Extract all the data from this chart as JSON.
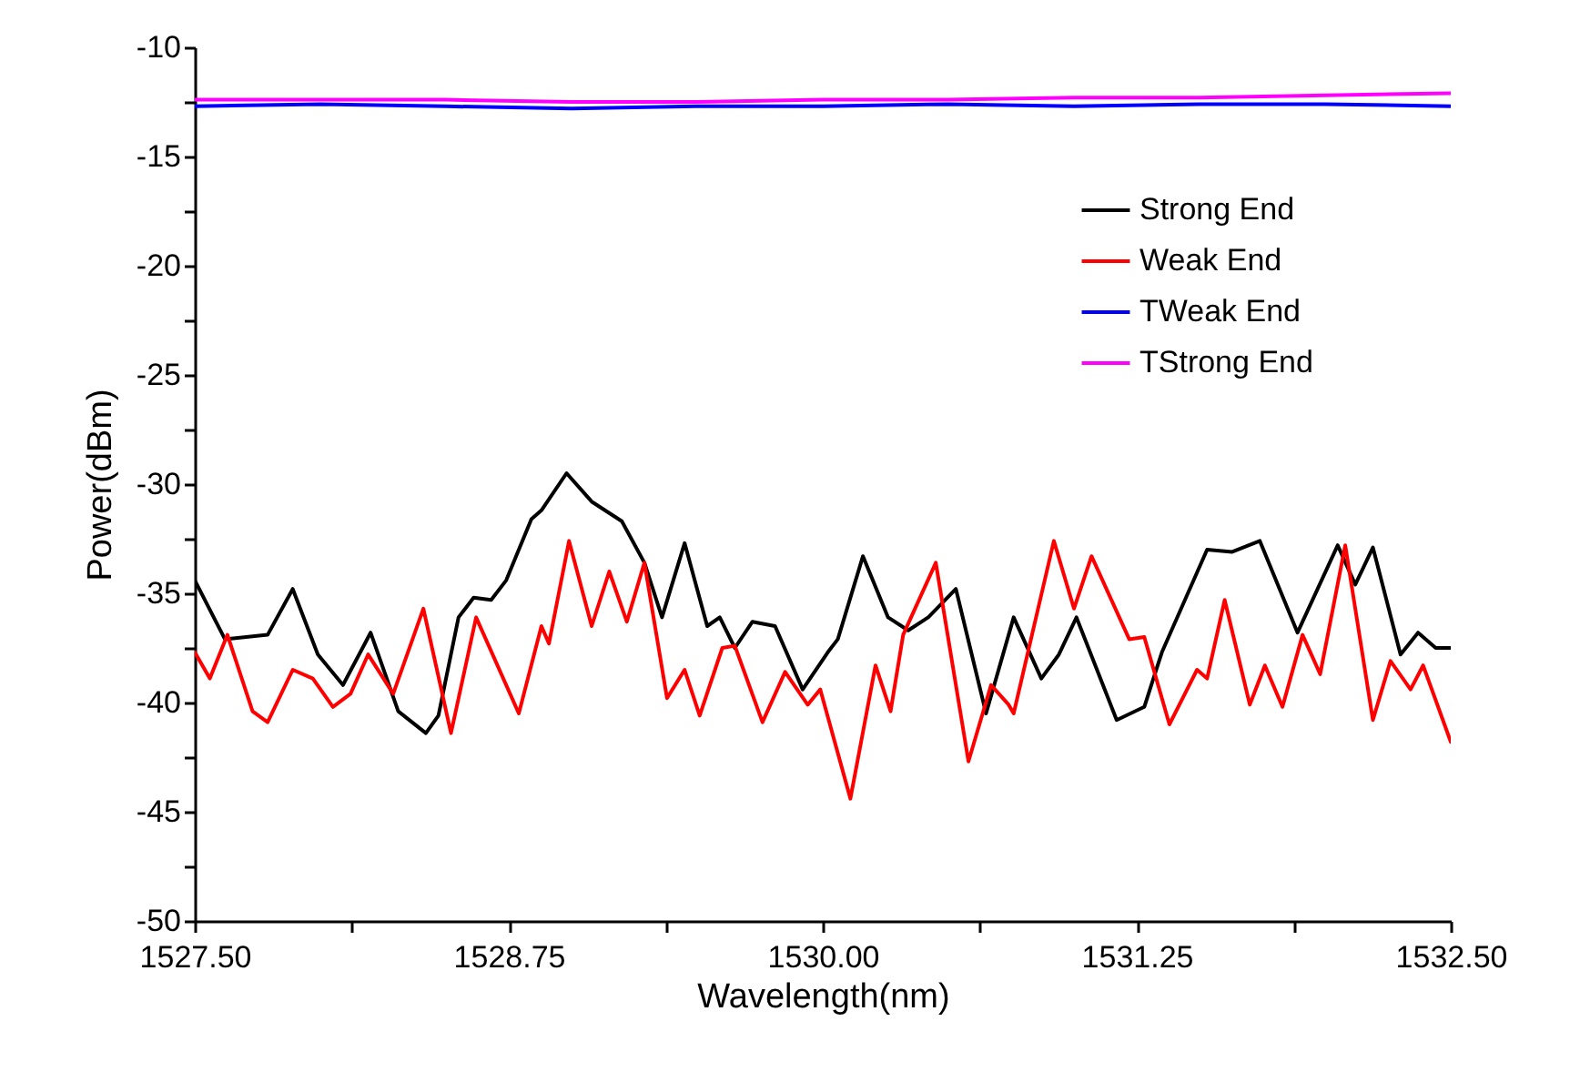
{
  "chart_data": {
    "type": "line",
    "xlabel": "Wavelength(nm)",
    "ylabel": "Power(dBm)",
    "xlim": [
      1527.5,
      1532.5
    ],
    "xticks": [
      {
        "value": 1527.5,
        "label": "1527.50"
      },
      {
        "value": 1528.125,
        "label": null
      },
      {
        "value": 1528.75,
        "label": "1528.75"
      },
      {
        "value": 1529.375,
        "label": null
      },
      {
        "value": 1530,
        "label": "1530.00"
      },
      {
        "value": 1530.625,
        "label": null
      },
      {
        "value": 1531.25,
        "label": "1531.25"
      },
      {
        "value": 1531.875,
        "label": null
      },
      {
        "value": 1532.5,
        "label": "1532.50"
      }
    ],
    "ylim": [
      -50,
      -10
    ],
    "yticks": [
      -50,
      {
        "value": -47.5,
        "label": null
      },
      -45,
      {
        "value": -42.5,
        "label": null
      },
      -40,
      {
        "value": -37.5,
        "label": null
      },
      -35,
      {
        "value": -32.5,
        "label": null
      },
      -30,
      {
        "value": -27.5,
        "label": null
      },
      -25,
      {
        "value": -22.5,
        "label": null
      },
      -20,
      {
        "value": -17.5,
        "label": null
      },
      -15,
      {
        "value": -12.5,
        "label": null
      },
      -10
    ],
    "legend": "top right",
    "series": [
      {
        "name": "Strong End",
        "color": "#000000",
        "x": [
          1527.5,
          1527.62,
          1527.79,
          1527.89,
          1527.99,
          1528.09,
          1528.2,
          1528.31,
          1528.42,
          1528.47,
          1528.55,
          1528.61,
          1528.68,
          1528.74,
          1528.84,
          1528.88,
          1528.98,
          1529.08,
          1529.2,
          1529.29,
          1529.36,
          1529.45,
          1529.54,
          1529.59,
          1529.65,
          1529.72,
          1529.81,
          1529.92,
          1530.02,
          1530.06,
          1530.16,
          1530.26,
          1530.34,
          1530.42,
          1530.53,
          1530.65,
          1530.76,
          1530.87,
          1530.94,
          1531.01,
          1531.17,
          1531.28,
          1531.35,
          1531.53,
          1531.63,
          1531.74,
          1531.89,
          1532.05,
          1532.12,
          1532.19,
          1532.3,
          1532.37,
          1532.44,
          1532.5
        ],
        "values": [
          -34.4,
          -37.1,
          -36.9,
          -34.8,
          -37.8,
          -39.2,
          -36.8,
          -40.4,
          -41.4,
          -40.6,
          -36.1,
          -35.2,
          -35.3,
          -34.4,
          -31.6,
          -31.2,
          -29.5,
          -30.8,
          -31.7,
          -33.6,
          -36.1,
          -32.7,
          -36.5,
          -36.1,
          -37.5,
          -36.3,
          -36.5,
          -39.4,
          -37.7,
          -37.1,
          -33.3,
          -36.1,
          -36.7,
          -36.1,
          -34.8,
          -40.5,
          -36.1,
          -38.9,
          -37.8,
          -36.1,
          -40.8,
          -40.2,
          -37.7,
          -33.0,
          -33.1,
          -32.6,
          -36.8,
          -32.8,
          -34.6,
          -32.9,
          -37.8,
          -36.8,
          -37.5,
          -37.5
        ]
      },
      {
        "name": "Weak End",
        "color": "#ff0000",
        "x": [
          1527.5,
          1527.56,
          1527.63,
          1527.73,
          1527.79,
          1527.89,
          1527.97,
          1528.05,
          1528.12,
          1528.19,
          1528.29,
          1528.41,
          1528.52,
          1528.62,
          1528.79,
          1528.88,
          1528.91,
          1528.99,
          1529.08,
          1529.15,
          1529.22,
          1529.29,
          1529.38,
          1529.45,
          1529.51,
          1529.6,
          1529.65,
          1529.76,
          1529.85,
          1529.94,
          1529.99,
          1530.11,
          1530.21,
          1530.27,
          1530.32,
          1530.45,
          1530.58,
          1530.67,
          1530.74,
          1530.76,
          1530.92,
          1531.0,
          1531.07,
          1531.22,
          1531.28,
          1531.38,
          1531.49,
          1531.53,
          1531.6,
          1531.7,
          1531.76,
          1531.83,
          1531.91,
          1531.98,
          1532.08,
          1532.19,
          1532.26,
          1532.34,
          1532.39,
          1532.5
        ],
        "values": [
          -37.7,
          -38.9,
          -36.9,
          -40.4,
          -40.9,
          -38.5,
          -38.9,
          -40.2,
          -39.6,
          -37.8,
          -39.6,
          -35.7,
          -41.4,
          -36.1,
          -40.5,
          -36.5,
          -37.3,
          -32.6,
          -36.5,
          -34.0,
          -36.3,
          -33.6,
          -39.8,
          -38.5,
          -40.6,
          -37.5,
          -37.4,
          -40.9,
          -38.6,
          -40.1,
          -39.4,
          -44.4,
          -38.3,
          -40.4,
          -36.9,
          -33.6,
          -42.7,
          -39.2,
          -40.1,
          -40.5,
          -32.6,
          -35.7,
          -33.3,
          -37.1,
          -37.0,
          -41.0,
          -38.5,
          -38.9,
          -35.3,
          -40.1,
          -38.3,
          -40.2,
          -36.9,
          -38.7,
          -32.8,
          -40.8,
          -38.1,
          -39.4,
          -38.3,
          -41.8
        ]
      },
      {
        "name": "TWeak End",
        "color": "#0000ff",
        "x": [
          1527.5,
          1528.0,
          1528.5,
          1529.0,
          1529.5,
          1530.0,
          1530.5,
          1531.0,
          1531.5,
          1532.0,
          1532.5
        ],
        "values": [
          -12.7,
          -12.6,
          -12.7,
          -12.8,
          -12.7,
          -12.7,
          -12.6,
          -12.7,
          -12.6,
          -12.6,
          -12.7
        ]
      },
      {
        "name": "TStrong End",
        "color": "#ff00ff",
        "x": [
          1527.5,
          1528.0,
          1528.5,
          1529.0,
          1529.5,
          1530.0,
          1530.5,
          1531.0,
          1531.5,
          1532.0,
          1532.5
        ],
        "values": [
          -12.4,
          -12.4,
          -12.4,
          -12.5,
          -12.5,
          -12.4,
          -12.4,
          -12.3,
          -12.3,
          -12.2,
          -12.1
        ]
      }
    ]
  }
}
